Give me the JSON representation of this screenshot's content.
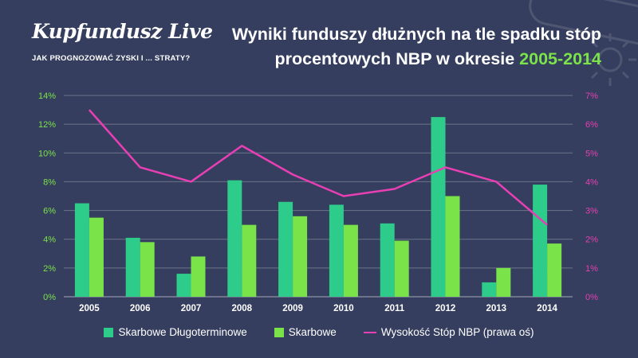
{
  "brand": {
    "logo": "Kupfundusz Live",
    "tagline": "JAK PROGNOZOWAĆ ZYSKI I ... STRATY?"
  },
  "title": {
    "line1": "Wyniki funduszy dłużnych na tle spadku stóp",
    "line2": "procentowych NBP w okresie",
    "highlight": "2005-2014"
  },
  "colors": {
    "background": "#353e5e",
    "series1": "#2ecc8a",
    "series2": "#7be34a",
    "line": "#e83fb4",
    "left_axis": "#7be34a",
    "right_axis": "#e83fb4"
  },
  "chart_data": {
    "type": "bar",
    "categories": [
      "2005",
      "2006",
      "2007",
      "2008",
      "2009",
      "2010",
      "2011",
      "2012",
      "2013",
      "2014"
    ],
    "series": [
      {
        "name": "Skarbowe Długoterminowe",
        "type": "bar",
        "axis": "left",
        "values": [
          6.5,
          4.1,
          1.6,
          8.1,
          6.6,
          6.4,
          5.1,
          12.5,
          1.0,
          7.8
        ]
      },
      {
        "name": "Skarbowe",
        "type": "bar",
        "axis": "left",
        "values": [
          5.5,
          3.8,
          2.8,
          5.0,
          5.6,
          5.0,
          3.9,
          7.0,
          2.0,
          3.7
        ]
      },
      {
        "name": "Wysokość Stóp NBP (prawa oś)",
        "type": "line",
        "axis": "right",
        "values": [
          6.5,
          4.5,
          4.0,
          5.25,
          4.25,
          3.5,
          3.75,
          4.5,
          4.0,
          2.5
        ]
      }
    ],
    "ylim_left": [
      0,
      14
    ],
    "ylim_right": [
      0,
      7
    ],
    "y_ticks_left": [
      "0%",
      "2%",
      "4%",
      "6%",
      "8%",
      "10%",
      "12%",
      "14%"
    ],
    "y_ticks_right": [
      "0%",
      "1%",
      "2%",
      "3%",
      "4%",
      "5%",
      "6%",
      "7%"
    ],
    "grid": true,
    "legend_position": "bottom"
  }
}
